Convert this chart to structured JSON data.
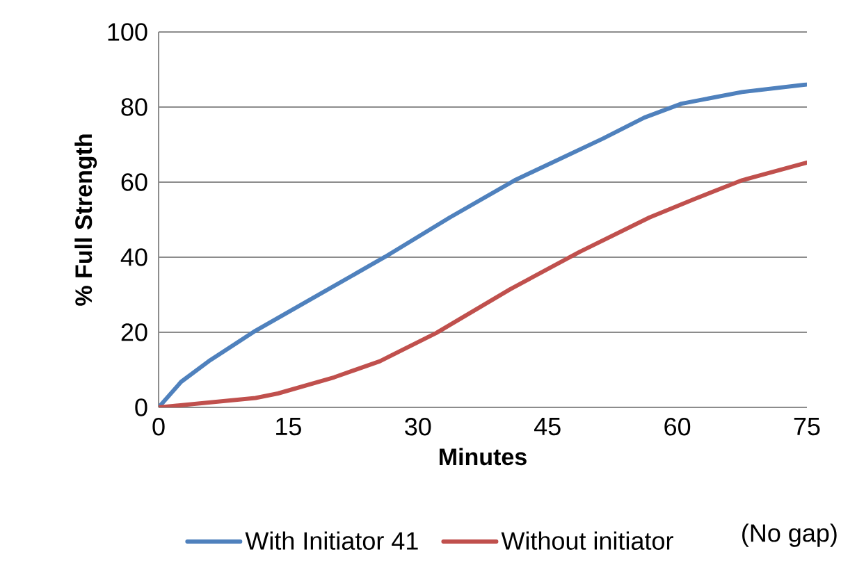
{
  "chart_data": {
    "type": "line",
    "xlabel": "Minutes",
    "ylabel": "% Full Strength",
    "xlim": [
      0,
      75
    ],
    "ylim": [
      0,
      100
    ],
    "xticks": [
      0,
      15,
      30,
      45,
      60,
      75
    ],
    "yticks": [
      0,
      20,
      40,
      60,
      80,
      100
    ],
    "grid": "y",
    "legend": "bottom",
    "annotations": [
      "(No gap)"
    ],
    "series": [
      {
        "name": "With Initiator 41",
        "color": "#4f81bd",
        "x": [
          0,
          2.6,
          5.8,
          11.2,
          19.2,
          26.2,
          33.7,
          41.2,
          51.4,
          56.2,
          60.5,
          67.5,
          75
        ],
        "values": [
          0,
          6.8,
          12.3,
          20.4,
          30.9,
          40.1,
          50.6,
          60.5,
          71.6,
          77.2,
          80.9,
          84,
          86
        ]
      },
      {
        "name": "Without initiator",
        "color": "#c0504d",
        "x": [
          0,
          11.2,
          13.8,
          20.3,
          25.6,
          32.1,
          40.7,
          48.7,
          56.8,
          62.1,
          67.5,
          75
        ],
        "values": [
          0,
          2.5,
          3.7,
          8.0,
          12.3,
          19.8,
          31.5,
          41.4,
          50.6,
          55.6,
          60.5,
          65.2
        ]
      }
    ]
  }
}
